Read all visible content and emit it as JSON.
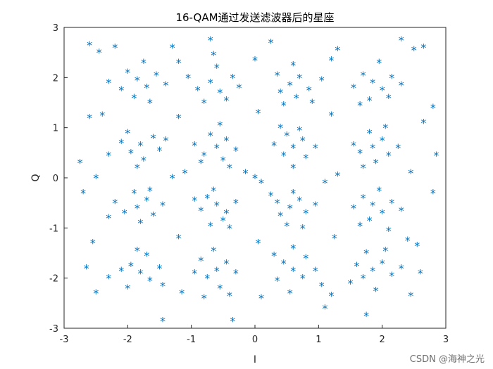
{
  "chart_data": {
    "type": "scatter",
    "title": "16-QAM通过发送滤波器后的星座",
    "xlabel": "I",
    "ylabel": "Q",
    "xlim": [
      -3,
      3
    ],
    "ylim": [
      -3,
      3
    ],
    "xticks": [
      "-3",
      "-2",
      "-1",
      "0",
      "1",
      "2",
      "3"
    ],
    "yticks": [
      "-3",
      "-2",
      "-1",
      "0",
      "1",
      "2",
      "3"
    ],
    "grid": false,
    "marker": "*",
    "marker_color": "#0072BD",
    "series": [
      {
        "points": [
          [
            -1.85,
            1.95
          ],
          [
            -1.7,
            1.8
          ],
          [
            -2.1,
            1.75
          ],
          [
            -1.55,
            2.05
          ],
          [
            -2.0,
            2.1
          ],
          [
            -1.9,
            1.6
          ],
          [
            -1.65,
            1.5
          ],
          [
            -2.3,
            1.9
          ],
          [
            -1.4,
            1.85
          ],
          [
            -1.75,
            2.3
          ],
          [
            -0.7,
            1.9
          ],
          [
            -0.55,
            1.7
          ],
          [
            -0.9,
            1.75
          ],
          [
            -0.35,
            2.0
          ],
          [
            -0.6,
            2.2
          ],
          [
            -0.8,
            1.5
          ],
          [
            -0.45,
            1.55
          ],
          [
            -1.05,
            2.0
          ],
          [
            -0.25,
            1.8
          ],
          [
            -0.65,
            2.45
          ],
          [
            0.55,
            1.85
          ],
          [
            0.7,
            2.0
          ],
          [
            0.4,
            1.7
          ],
          [
            0.85,
            1.75
          ],
          [
            0.6,
            2.25
          ],
          [
            0.35,
            2.05
          ],
          [
            0.9,
            1.5
          ],
          [
            0.45,
            1.45
          ],
          [
            1.05,
            1.95
          ],
          [
            0.65,
            1.6
          ],
          [
            1.85,
            1.9
          ],
          [
            2.0,
            1.75
          ],
          [
            1.7,
            2.05
          ],
          [
            2.15,
            2.0
          ],
          [
            1.8,
            1.55
          ],
          [
            1.55,
            1.8
          ],
          [
            2.3,
            1.85
          ],
          [
            1.95,
            2.3
          ],
          [
            1.65,
            1.45
          ],
          [
            2.1,
            1.6
          ],
          [
            -1.8,
            0.65
          ],
          [
            -1.95,
            0.5
          ],
          [
            -1.6,
            0.8
          ],
          [
            -2.1,
            0.7
          ],
          [
            -1.75,
            0.35
          ],
          [
            -1.5,
            0.55
          ],
          [
            -2.0,
            0.9
          ],
          [
            -1.85,
            0.2
          ],
          [
            -2.3,
            0.45
          ],
          [
            -1.4,
            0.75
          ],
          [
            -0.6,
            0.6
          ],
          [
            -0.45,
            0.75
          ],
          [
            -0.8,
            0.45
          ],
          [
            -0.5,
            0.35
          ],
          [
            -0.7,
            0.85
          ],
          [
            -0.3,
            0.55
          ],
          [
            -0.95,
            0.65
          ],
          [
            -0.55,
            1.05
          ],
          [
            -0.4,
            0.2
          ],
          [
            -0.85,
            0.3
          ],
          [
            0.6,
            0.6
          ],
          [
            0.45,
            0.45
          ],
          [
            0.75,
            0.75
          ],
          [
            0.5,
            0.85
          ],
          [
            0.8,
            0.4
          ],
          [
            0.3,
            0.65
          ],
          [
            0.95,
            0.6
          ],
          [
            0.6,
            0.2
          ],
          [
            0.4,
            1.0
          ],
          [
            0.7,
            0.95
          ],
          [
            1.85,
            0.6
          ],
          [
            2.0,
            0.75
          ],
          [
            1.65,
            0.5
          ],
          [
            2.1,
            0.45
          ],
          [
            1.8,
            0.9
          ],
          [
            1.55,
            0.65
          ],
          [
            2.25,
            0.6
          ],
          [
            1.9,
            0.3
          ],
          [
            1.7,
            0.2
          ],
          [
            2.05,
            1.0
          ],
          [
            -1.85,
            -0.6
          ],
          [
            -1.7,
            -0.45
          ],
          [
            -2.05,
            -0.7
          ],
          [
            -1.6,
            -0.75
          ],
          [
            -1.9,
            -0.3
          ],
          [
            -2.2,
            -0.5
          ],
          [
            -1.45,
            -0.55
          ],
          [
            -1.8,
            -0.9
          ],
          [
            -2.3,
            -0.8
          ],
          [
            -1.65,
            -0.25
          ],
          [
            -0.6,
            -0.55
          ],
          [
            -0.45,
            -0.7
          ],
          [
            -0.75,
            -0.4
          ],
          [
            -0.5,
            -0.85
          ],
          [
            -0.85,
            -0.65
          ],
          [
            -0.3,
            -0.5
          ],
          [
            -0.65,
            -0.25
          ],
          [
            -0.95,
            -0.45
          ],
          [
            -0.4,
            -1.0
          ],
          [
            -0.7,
            -0.95
          ],
          [
            0.55,
            -0.6
          ],
          [
            0.7,
            -0.45
          ],
          [
            0.4,
            -0.75
          ],
          [
            0.8,
            -0.7
          ],
          [
            0.6,
            -0.3
          ],
          [
            0.35,
            -0.5
          ],
          [
            0.95,
            -0.55
          ],
          [
            0.5,
            -0.95
          ],
          [
            0.75,
            -1.0
          ],
          [
            0.25,
            -0.35
          ],
          [
            1.85,
            -0.55
          ],
          [
            2.0,
            -0.7
          ],
          [
            1.7,
            -0.4
          ],
          [
            2.15,
            -0.5
          ],
          [
            1.8,
            -0.85
          ],
          [
            1.55,
            -0.6
          ],
          [
            2.3,
            -0.65
          ],
          [
            1.95,
            -0.25
          ],
          [
            1.65,
            -0.95
          ],
          [
            2.1,
            -1.05
          ],
          [
            -1.8,
            -1.9
          ],
          [
            -1.95,
            -1.75
          ],
          [
            -1.65,
            -2.05
          ],
          [
            -2.1,
            -1.85
          ],
          [
            -1.7,
            -1.55
          ],
          [
            -1.5,
            -1.8
          ],
          [
            -2.0,
            -2.2
          ],
          [
            -1.85,
            -1.45
          ],
          [
            -2.3,
            -2.0
          ],
          [
            -1.45,
            -2.15
          ],
          [
            -0.6,
            -1.85
          ],
          [
            -0.75,
            -2.0
          ],
          [
            -0.45,
            -1.7
          ],
          [
            -0.85,
            -1.65
          ],
          [
            -0.55,
            -2.2
          ],
          [
            -0.3,
            -1.9
          ],
          [
            -0.95,
            -1.9
          ],
          [
            -0.65,
            -1.45
          ],
          [
            -0.4,
            -2.35
          ],
          [
            -0.8,
            -2.4
          ],
          [
            0.6,
            -1.85
          ],
          [
            0.45,
            -1.7
          ],
          [
            0.75,
            -2.0
          ],
          [
            0.35,
            -2.05
          ],
          [
            0.8,
            -1.6
          ],
          [
            0.55,
            -2.3
          ],
          [
            0.95,
            -1.85
          ],
          [
            0.6,
            -1.4
          ],
          [
            0.3,
            -1.55
          ],
          [
            1.05,
            -2.15
          ],
          [
            1.85,
            -1.85
          ],
          [
            1.7,
            -2.0
          ],
          [
            2.0,
            -1.7
          ],
          [
            1.6,
            -1.75
          ],
          [
            2.15,
            -1.95
          ],
          [
            1.9,
            -2.25
          ],
          [
            1.75,
            -1.5
          ],
          [
            2.3,
            -1.8
          ],
          [
            1.5,
            -2.1
          ],
          [
            2.05,
            -1.45
          ],
          [
            -2.6,
            2.65
          ],
          [
            -2.45,
            2.5
          ],
          [
            -2.2,
            2.6
          ],
          [
            2.5,
            2.55
          ],
          [
            2.65,
            2.6
          ],
          [
            2.3,
            2.75
          ],
          [
            -2.7,
            -0.3
          ],
          [
            -2.75,
            0.3
          ],
          [
            2.8,
            -0.3
          ],
          [
            2.85,
            0.45
          ],
          [
            2.8,
            1.4
          ],
          [
            -2.65,
            -1.8
          ],
          [
            -2.5,
            -2.3
          ],
          [
            2.6,
            -1.9
          ],
          [
            2.45,
            -2.35
          ],
          [
            -1.45,
            -2.85
          ],
          [
            -0.35,
            -2.85
          ],
          [
            1.1,
            -2.6
          ],
          [
            1.75,
            -2.75
          ],
          [
            -0.7,
            2.75
          ],
          [
            0.25,
            2.7
          ],
          [
            1.3,
            2.55
          ],
          [
            -1.3,
            2.6
          ],
          [
            -2.6,
            1.2
          ],
          [
            2.65,
            1.1
          ],
          [
            -2.55,
            -1.3
          ],
          [
            2.55,
            -1.35
          ],
          [
            0.0,
            0.0
          ],
          [
            0.1,
            -0.1
          ],
          [
            -0.15,
            0.1
          ],
          [
            -1.2,
            1.2
          ],
          [
            1.2,
            1.25
          ],
          [
            -1.2,
            -1.2
          ],
          [
            1.25,
            -1.2
          ],
          [
            0.05,
            1.3
          ],
          [
            0.05,
            -1.3
          ],
          [
            -1.3,
            0.0
          ],
          [
            1.3,
            0.05
          ],
          [
            -1.1,
            0.1
          ],
          [
            1.1,
            -0.1
          ],
          [
            0.0,
            2.35
          ],
          [
            0.1,
            -2.4
          ],
          [
            -2.5,
            0.0
          ],
          [
            2.45,
            0.1
          ],
          [
            -1.2,
            2.3
          ],
          [
            1.2,
            2.35
          ],
          [
            -1.15,
            -2.3
          ],
          [
            1.2,
            -2.35
          ],
          [
            -2.4,
            1.25
          ],
          [
            2.4,
            -1.25
          ]
        ]
      }
    ]
  },
  "watermark": "CSDN @海神之光"
}
